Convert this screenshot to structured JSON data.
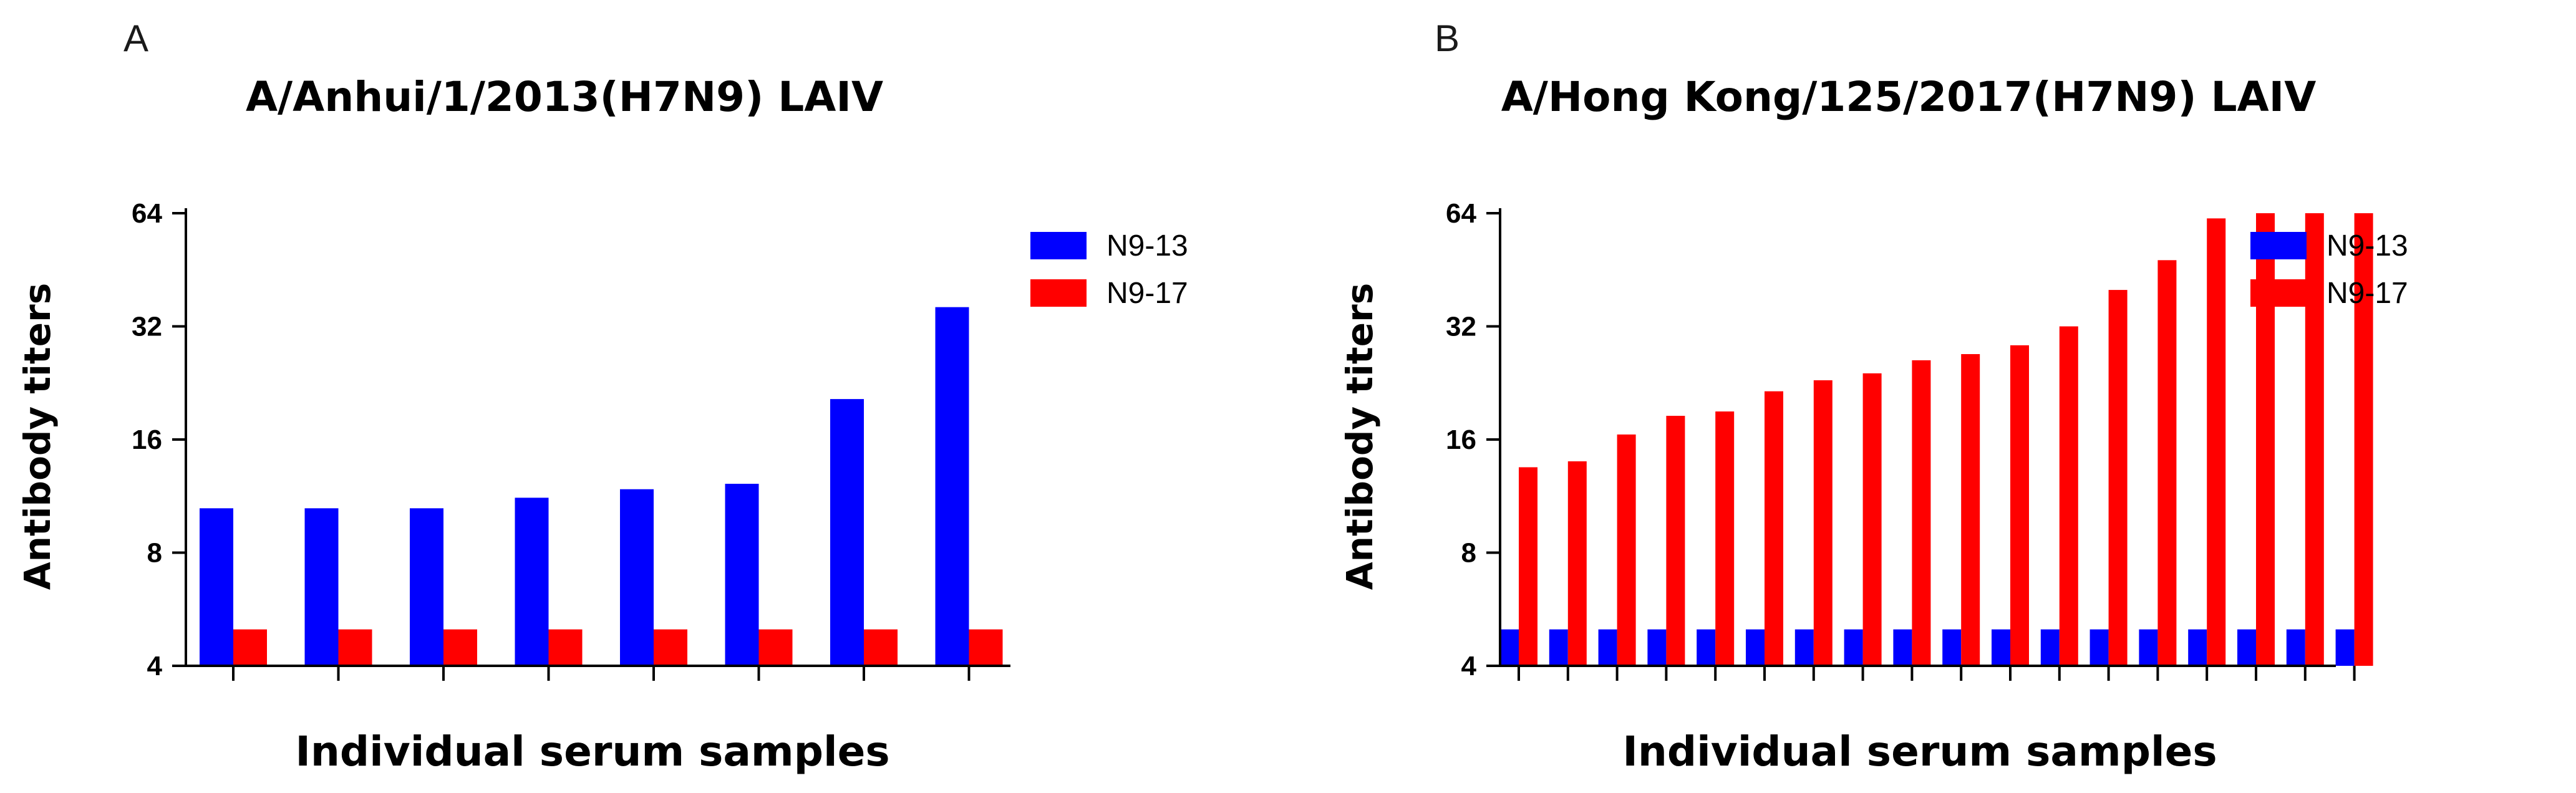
{
  "chart_data": [
    {
      "panel": "A",
      "type": "bar",
      "title": "A/Anhui/1/2013(H7N9) LAIV",
      "xlabel": "Individual serum samples",
      "ylabel": "Antibody titers",
      "yscale": "log2",
      "ylim": [
        4,
        64
      ],
      "yticks": [
        4,
        8,
        16,
        32,
        64
      ],
      "legend_position": "top-right",
      "series": [
        {
          "name": "N9-13",
          "color": "#0000ff",
          "values": [
            10.5,
            10.5,
            10.5,
            11.2,
            11.8,
            12.2,
            20.5,
            36
          ]
        },
        {
          "name": "N9-17",
          "color": "#ff0000",
          "values": [
            5,
            5,
            5,
            5,
            5,
            5,
            5,
            5
          ]
        }
      ]
    },
    {
      "panel": "B",
      "type": "bar",
      "title": "A/Hong Kong/125/2017(H7N9) LAIV",
      "xlabel": "Individual serum samples",
      "ylabel": "Antibody titers",
      "yscale": "log2",
      "ylim": [
        4,
        64
      ],
      "yticks": [
        4,
        8,
        16,
        32,
        64
      ],
      "legend_position": "top-right",
      "series": [
        {
          "name": "N9-13",
          "color": "#0000ff",
          "values": [
            5,
            5,
            5,
            5,
            5,
            5,
            5,
            5,
            5,
            5,
            5,
            5,
            5,
            5,
            5,
            5,
            5,
            5
          ]
        },
        {
          "name": "N9-17",
          "color": "#ff0000",
          "values": [
            13.5,
            14,
            16.5,
            18.5,
            19,
            21.5,
            23,
            24,
            26,
            27,
            28.5,
            32,
            40,
            48,
            62,
            64,
            64,
            64
          ]
        }
      ]
    }
  ]
}
